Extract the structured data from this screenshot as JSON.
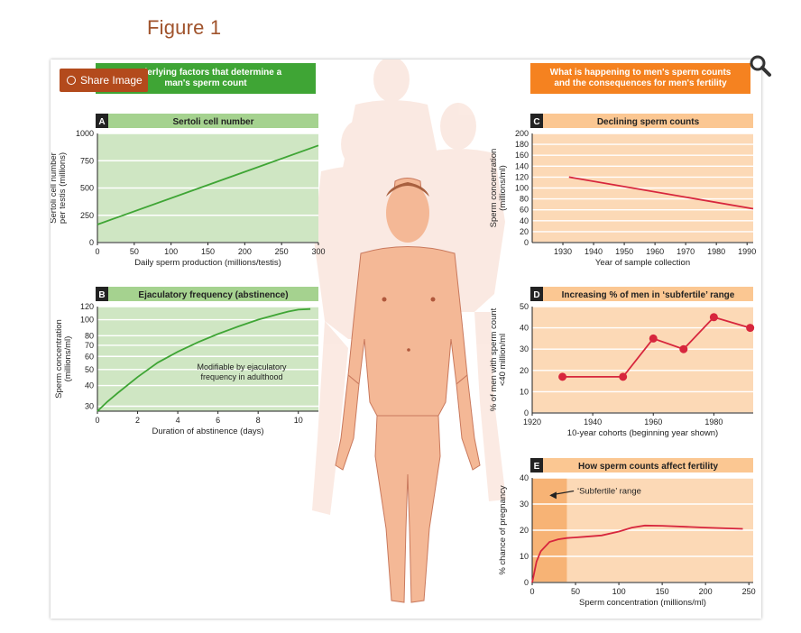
{
  "figure_title": "Figure 1",
  "share_label": "Share Image",
  "colors": {
    "green": "#3fa535",
    "green_light": "#cfe6c3",
    "orange": "#f58220",
    "orange_light": "#fcd9b6",
    "red": "#d7263d",
    "skin": "#f4b896"
  },
  "left_header": [
    "Underlying factors that determine a",
    "man's sperm count"
  ],
  "right_header": [
    "What is happening to men's sperm counts",
    "and the consequences for men's fertility"
  ],
  "chart_data": [
    {
      "id": "A",
      "type": "line",
      "title": "Sertoli cell number",
      "xlabel": "Daily sperm production (millions/testis)",
      "ylabel": [
        "Sertoli cell number",
        "per testis (millions)"
      ],
      "xlim": [
        0,
        300
      ],
      "ylim": [
        0,
        1000
      ],
      "xticks": [
        0,
        50,
        100,
        150,
        200,
        250,
        300
      ],
      "yticks": [
        0,
        250,
        500,
        750,
        1000
      ],
      "series": [
        {
          "x": [
            0,
            300
          ],
          "y": [
            165,
            890
          ]
        }
      ]
    },
    {
      "id": "B",
      "type": "line",
      "title": "Ejaculatory frequency (abstinence)",
      "xlabel": "Duration of abstinence (days)",
      "ylabel": [
        "Sperm concentration",
        "(millions/ml)"
      ],
      "xlim": [
        0,
        11
      ],
      "ylim": [
        28,
        120
      ],
      "yscale": "log",
      "xticks": [
        0,
        2,
        4,
        6,
        8,
        10
      ],
      "yticks": [
        30,
        40,
        50,
        60,
        70,
        80,
        100,
        120
      ],
      "annotation": [
        "Modifiable by ejaculatory",
        "frequency in adulthood"
      ],
      "series": [
        {
          "x": [
            0,
            0.5,
            1,
            2,
            3,
            4,
            5,
            6,
            7,
            8,
            9,
            9.5,
            10,
            10.6
          ],
          "y": [
            28,
            32,
            36,
            45,
            55,
            64,
            73,
            82,
            91,
            100,
            108,
            112,
            115,
            116
          ]
        }
      ]
    },
    {
      "id": "C",
      "type": "line",
      "title": "Declining sperm counts",
      "xlabel": "Year of sample collection",
      "ylabel": [
        "Sperm concentration",
        "(millions/ml)"
      ],
      "xlim": [
        1920,
        1992
      ],
      "ylim": [
        0,
        200
      ],
      "xticks": [
        1930,
        1940,
        1950,
        1960,
        1970,
        1980,
        1990
      ],
      "yticks": [
        0,
        20,
        40,
        60,
        80,
        100,
        120,
        140,
        160,
        180,
        200
      ],
      "series": [
        {
          "x": [
            1932,
            1992
          ],
          "y": [
            120,
            62
          ]
        }
      ]
    },
    {
      "id": "D",
      "type": "line",
      "title": "Increasing % of men in ‘subfertile’ range",
      "xlabel": "10-year cohorts (beginning year shown)",
      "ylabel": [
        "% of men with sperm count",
        "<40 million/ml"
      ],
      "xlim": [
        1920,
        1993
      ],
      "ylim": [
        0,
        50
      ],
      "xticks": [
        1920,
        1940,
        1960,
        1980
      ],
      "yticks": [
        0,
        10,
        20,
        30,
        40,
        50
      ],
      "series": [
        {
          "x": [
            1930,
            1950,
            1960,
            1970,
            1980,
            1992
          ],
          "y": [
            17,
            17,
            35,
            30,
            45,
            40
          ]
        }
      ]
    },
    {
      "id": "E",
      "type": "line",
      "title": "How sperm counts affect fertility",
      "xlabel": "Sperm concentration (millions/ml)",
      "ylabel": [
        "% chance of pregnancy"
      ],
      "xlim": [
        0,
        255
      ],
      "ylim": [
        0,
        40
      ],
      "xticks": [
        0,
        50,
        100,
        150,
        200,
        250
      ],
      "yticks": [
        0,
        10,
        20,
        30,
        40
      ],
      "annotation": [
        "‘Subfertile’ range"
      ],
      "shade": [
        0,
        40
      ],
      "series": [
        {
          "x": [
            0,
            5,
            10,
            20,
            30,
            40,
            60,
            80,
            100,
            115,
            130,
            150,
            200,
            243
          ],
          "y": [
            0,
            8,
            12,
            15.5,
            16.5,
            17,
            17.5,
            18,
            19.5,
            21,
            21.8,
            21.7,
            21,
            20.5
          ]
        }
      ]
    }
  ]
}
